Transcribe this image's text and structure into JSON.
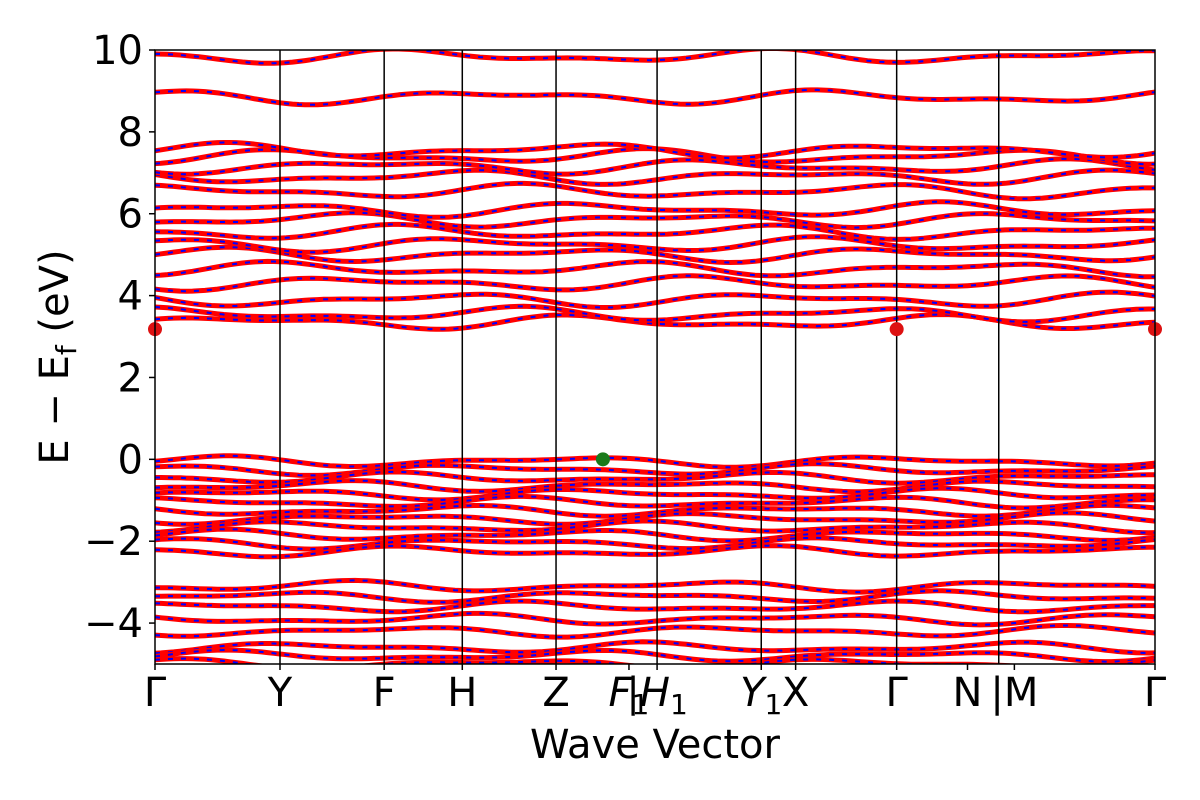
{
  "chart_data": {
    "type": "line",
    "title": "",
    "xlabel": "Wave Vector",
    "ylabel": "E − E_f (eV)",
    "ylabel_main": "E − E",
    "ylabel_sub": "f",
    "ylabel_unit": " (eV)",
    "ylim": [
      -5,
      10
    ],
    "yticks": [
      -4,
      -2,
      0,
      2,
      4,
      6,
      8,
      10
    ],
    "ytick_labels": [
      "−4",
      "−2",
      "0",
      "2",
      "4",
      "6",
      "8",
      "10"
    ],
    "grid": false,
    "legend": "none",
    "colors": {
      "band_outer": "#ff0000",
      "band_inner": "#0000ff",
      "cbm_marker": "#dd1111",
      "vbm_marker": "#1a7a1a",
      "divider": "#000000"
    },
    "kpath": [
      {
        "label": "Γ",
        "base": "Γ",
        "sub": "",
        "italic": false,
        "x": 0
      },
      {
        "label": "Y",
        "base": "Y",
        "sub": "",
        "italic": false,
        "x": 1.2
      },
      {
        "label": "F",
        "base": "F",
        "sub": "",
        "italic": false,
        "x": 2.2
      },
      {
        "label": "H",
        "base": "H",
        "sub": "",
        "italic": false,
        "x": 2.95
      },
      {
        "label": "Z",
        "base": "Z",
        "sub": "",
        "italic": false,
        "x": 3.85
      },
      {
        "label": "F1",
        "base": "F",
        "sub": "1",
        "italic": true,
        "x": 4.55
      },
      {
        "label": "|H1",
        "base": "|H",
        "sub": "1",
        "italic": true,
        "x": 4.82
      },
      {
        "label": "Y1",
        "base": "Y",
        "sub": "1",
        "italic": true,
        "x": 5.82
      },
      {
        "label": "X",
        "base": "X",
        "sub": "",
        "italic": false,
        "x": 6.15
      },
      {
        "label": "Γ",
        "base": "Γ",
        "sub": "",
        "italic": false,
        "x": 7.12
      },
      {
        "label": "N",
        "base": "N",
        "sub": "",
        "italic": false,
        "x": 7.8
      },
      {
        "label": "|M",
        "base": "|M",
        "sub": "",
        "italic": false,
        "x": 8.25
      },
      {
        "label": "Γ",
        "base": "Γ",
        "sub": "",
        "italic": false,
        "x": 9.6
      }
    ],
    "xlim": [
      0,
      9.6
    ],
    "vertical_lines_x": [
      1.2,
      2.2,
      2.95,
      3.85,
      4.82,
      5.82,
      6.15,
      7.12,
      8.1
    ],
    "cbm_points": [
      {
        "x": 0,
        "y": 3.18
      },
      {
        "x": 7.12,
        "y": 3.18
      },
      {
        "x": 9.6,
        "y": 3.18
      }
    ],
    "vbm_point": {
      "x": 4.3,
      "y": 0.0
    },
    "conduction_band_levels": [
      3.35,
      3.55,
      3.9,
      4.3,
      4.65,
      5.0,
      5.25,
      5.55,
      5.85,
      6.1,
      6.55,
      6.9,
      7.15,
      7.4,
      7.55,
      8.85,
      9.85
    ],
    "valence_band_levels": [
      -0.05,
      -0.25,
      -0.45,
      -0.65,
      -0.85,
      -1.05,
      -1.25,
      -1.45,
      -1.65,
      -1.85,
      -2.05,
      -2.25,
      -3.1,
      -3.35,
      -3.6,
      -3.9,
      -4.2,
      -4.6,
      -4.8,
      -5.0
    ]
  }
}
